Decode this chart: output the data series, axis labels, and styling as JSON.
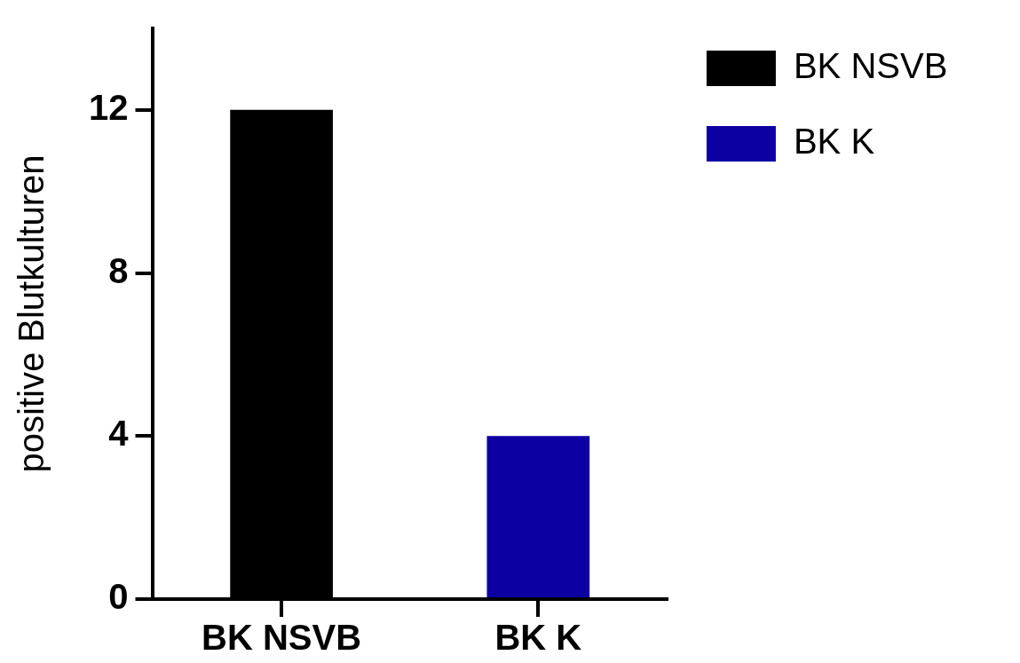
{
  "chart_data": {
    "type": "bar",
    "ylabel": "positive Blutkulturen",
    "categories": [
      "BK NSVB",
      "BK K"
    ],
    "series": [
      {
        "name": "BK NSVB",
        "color": "#000000",
        "values": [
          12,
          null
        ]
      },
      {
        "name": "BK K",
        "color": "#0d00a3",
        "values": [
          null,
          4
        ]
      }
    ],
    "ylim": [
      0,
      14
    ],
    "yticks": [
      0,
      4,
      8,
      12
    ],
    "grid": false,
    "legend": "top right"
  }
}
